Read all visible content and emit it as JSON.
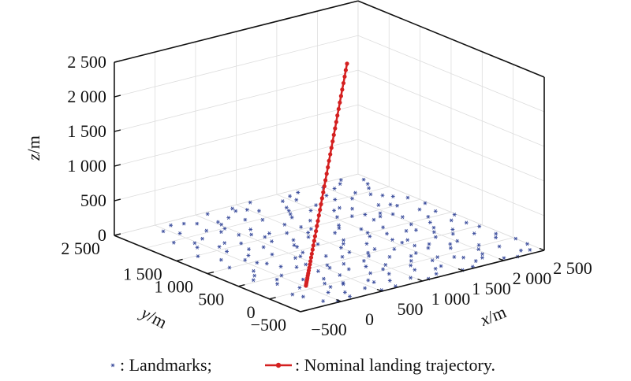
{
  "chart_data": {
    "type": "scatter",
    "projection": "3d",
    "xlabel": {
      "var": "x",
      "unit": "/m"
    },
    "ylabel": {
      "var": "y",
      "unit": "/m"
    },
    "zlabel": {
      "var": "z",
      "unit": "/m"
    },
    "xlim": [
      -500,
      2500
    ],
    "ylim": [
      -500,
      2500
    ],
    "zlim": [
      0,
      2500
    ],
    "grid": true,
    "x_ticks": [
      {
        "v": -500,
        "label": "−500"
      },
      {
        "v": 0,
        "label": "0"
      },
      {
        "v": 500,
        "label": "500"
      },
      {
        "v": 1000,
        "label": "1 000"
      },
      {
        "v": 1500,
        "label": "1 500"
      },
      {
        "v": 2000,
        "label": "2 000"
      },
      {
        "v": 2500,
        "label": "2 500"
      }
    ],
    "y_ticks": [
      {
        "v": -500,
        "label": "−500"
      },
      {
        "v": 0,
        "label": "0"
      },
      {
        "v": 500,
        "label": "500"
      },
      {
        "v": 1000,
        "label": "1 000"
      },
      {
        "v": 1500,
        "label": "1 500"
      },
      {
        "v": 2500,
        "label": "2 500"
      }
    ],
    "z_ticks": [
      {
        "v": 0,
        "label": "0"
      },
      {
        "v": 500,
        "label": "500"
      },
      {
        "v": 1000,
        "label": "1 000"
      },
      {
        "v": 1500,
        "label": "1 500"
      },
      {
        "v": 2000,
        "label": "2 000"
      },
      {
        "v": 2500,
        "label": "2 500"
      }
    ],
    "legend": {
      "placement": "bottom",
      "items": [
        {
          "label": ": Landmarks;",
          "marker": "asterisk"
        },
        {
          "label": ": Nominal landing trajectory.",
          "marker": "line-dot"
        }
      ]
    },
    "colors": {
      "landmarks": "#3a4c9c",
      "trajectory": "#d42020",
      "grid": "#dddddd",
      "axis": "#111111"
    },
    "series": [
      {
        "name": "Landmarks",
        "z": 0,
        "points": [
          [
            120,
            2400
          ],
          [
            350,
            2280
          ],
          [
            610,
            2450
          ],
          [
            880,
            2350
          ],
          [
            1150,
            2470
          ],
          [
            1420,
            2300
          ],
          [
            1700,
            2420
          ],
          [
            1980,
            2380
          ],
          [
            2260,
            2460
          ],
          [
            2440,
            2330
          ],
          [
            40,
            2150
          ],
          [
            290,
            2050
          ],
          [
            540,
            2190
          ],
          [
            790,
            2080
          ],
          [
            1060,
            2210
          ],
          [
            1330,
            2120
          ],
          [
            1600,
            2000
          ],
          [
            1860,
            2170
          ],
          [
            2130,
            2060
          ],
          [
            2390,
            2200
          ],
          [
            -180,
            1960
          ],
          [
            110,
            1880
          ],
          [
            380,
            1930
          ],
          [
            650,
            1810
          ],
          [
            920,
            1970
          ],
          [
            1190,
            1850
          ],
          [
            1460,
            1900
          ],
          [
            1730,
            1790
          ],
          [
            2000,
            1940
          ],
          [
            2290,
            1830
          ],
          [
            -90,
            1700
          ],
          [
            200,
            1640
          ],
          [
            460,
            1750
          ],
          [
            720,
            1600
          ],
          [
            1000,
            1720
          ],
          [
            1270,
            1660
          ],
          [
            1540,
            1580
          ],
          [
            1810,
            1690
          ],
          [
            2080,
            1620
          ],
          [
            2350,
            1740
          ],
          [
            -250,
            1480
          ],
          [
            60,
            1420
          ],
          [
            320,
            1530
          ],
          [
            590,
            1390
          ],
          [
            860,
            1500
          ],
          [
            1120,
            1450
          ],
          [
            1400,
            1370
          ],
          [
            1670,
            1510
          ],
          [
            1940,
            1410
          ],
          [
            2210,
            1490
          ],
          [
            2470,
            1380
          ],
          [
            -140,
            1250
          ],
          [
            150,
            1190
          ],
          [
            420,
            1300
          ],
          [
            690,
            1160
          ],
          [
            950,
            1270
          ],
          [
            1230,
            1210
          ],
          [
            1500,
            1140
          ],
          [
            1770,
            1290
          ],
          [
            2040,
            1180
          ],
          [
            2310,
            1260
          ],
          [
            -220,
            1010
          ],
          [
            80,
            960
          ],
          [
            350,
            1070
          ],
          [
            620,
            930
          ],
          [
            890,
            1040
          ],
          [
            1160,
            980
          ],
          [
            1430,
            910
          ],
          [
            1700,
            1050
          ],
          [
            1970,
            950
          ],
          [
            2240,
            1030
          ],
          [
            2480,
            920
          ],
          [
            -100,
            780
          ],
          [
            190,
            720
          ],
          [
            460,
            840
          ],
          [
            730,
            700
          ],
          [
            1000,
            810
          ],
          [
            1270,
            750
          ],
          [
            1540,
            690
          ],
          [
            1810,
            820
          ],
          [
            2080,
            730
          ],
          [
            2350,
            800
          ],
          [
            -270,
            560
          ],
          [
            30,
            500
          ],
          [
            300,
            610
          ],
          [
            570,
            470
          ],
          [
            840,
            580
          ],
          [
            1110,
            520
          ],
          [
            1380,
            450
          ],
          [
            1650,
            590
          ],
          [
            1920,
            490
          ],
          [
            2190,
            570
          ],
          [
            2450,
            480
          ],
          [
            -160,
            320
          ],
          [
            120,
            270
          ],
          [
            390,
            380
          ],
          [
            660,
            240
          ],
          [
            930,
            350
          ],
          [
            1200,
            290
          ],
          [
            1470,
            220
          ],
          [
            1740,
            360
          ],
          [
            2010,
            260
          ],
          [
            2280,
            340
          ],
          [
            -60,
            90
          ],
          [
            210,
            40
          ],
          [
            480,
            150
          ],
          [
            750,
            10
          ],
          [
            1020,
            120
          ],
          [
            1290,
            60
          ],
          [
            1560,
            -10
          ],
          [
            1830,
            130
          ],
          [
            2100,
            30
          ],
          [
            2370,
            110
          ],
          [
            -200,
            -150
          ],
          [
            70,
            -200
          ],
          [
            340,
            -90
          ],
          [
            610,
            -230
          ],
          [
            880,
            -120
          ],
          [
            1150,
            -180
          ],
          [
            1420,
            -250
          ],
          [
            1690,
            -110
          ],
          [
            1960,
            -210
          ],
          [
            2230,
            -130
          ],
          [
            2490,
            -240
          ],
          [
            -130,
            -380
          ],
          [
            160,
            -430
          ],
          [
            430,
            -320
          ],
          [
            700,
            -460
          ],
          [
            970,
            -350
          ],
          [
            1240,
            -410
          ],
          [
            1510,
            -480
          ],
          [
            1780,
            -340
          ],
          [
            2050,
            -440
          ],
          [
            2320,
            -360
          ],
          [
            250,
            2360
          ],
          [
            520,
            2110
          ],
          [
            990,
            2310
          ],
          [
            1290,
            2030
          ],
          [
            1550,
            2250
          ],
          [
            2050,
            2290
          ],
          [
            2320,
            2090
          ],
          [
            -50,
            2300
          ],
          [
            700,
            2230
          ],
          [
            1850,
            2020
          ],
          [
            -30,
            1820
          ],
          [
            560,
            1680
          ],
          [
            1080,
            1560
          ],
          [
            1640,
            1760
          ],
          [
            2180,
            1560
          ],
          [
            2440,
            1620
          ],
          [
            270,
            1340
          ],
          [
            780,
            1290
          ],
          [
            1350,
            1300
          ],
          [
            1880,
            1330
          ],
          [
            2400,
            1120
          ],
          [
            40,
            1100
          ],
          [
            530,
            850
          ],
          [
            1090,
            890
          ],
          [
            1610,
            870
          ],
          [
            2150,
            880
          ],
          [
            -180,
            660
          ],
          [
            420,
            620
          ],
          [
            980,
            650
          ],
          [
            1560,
            560
          ],
          [
            2000,
            620
          ],
          [
            2420,
            650
          ],
          [
            -80,
            430
          ],
          [
            540,
            390
          ],
          [
            1060,
            440
          ],
          [
            1600,
            410
          ],
          [
            2110,
            460
          ],
          [
            290,
            160
          ],
          [
            840,
            200
          ],
          [
            1380,
            180
          ],
          [
            1900,
            230
          ],
          [
            2440,
            200
          ],
          [
            -240,
            -30
          ],
          [
            360,
            -60
          ],
          [
            920,
            30
          ],
          [
            1460,
            -60
          ],
          [
            2020,
            -70
          ],
          [
            2500,
            -40
          ],
          [
            200,
            -300
          ],
          [
            760,
            -290
          ],
          [
            1330,
            -280
          ],
          [
            1890,
            -300
          ],
          [
            2400,
            -400
          ],
          [
            -20,
            -470
          ],
          [
            520,
            -470
          ],
          [
            1090,
            -480
          ],
          [
            1650,
            -460
          ],
          [
            2180,
            -490
          ],
          [
            900,
            2430
          ],
          [
            1570,
            2380
          ],
          [
            2180,
            2370
          ],
          [
            470,
            1990
          ],
          [
            1240,
            1940
          ],
          [
            2220,
            1930
          ],
          [
            620,
            1540
          ],
          [
            1800,
            1470
          ],
          [
            90,
            1580
          ],
          [
            1030,
            1380
          ],
          [
            2020,
            1310
          ],
          [
            1480,
            1010
          ],
          [
            680,
            1100
          ],
          [
            1900,
            780
          ],
          [
            140,
            880
          ],
          [
            1230,
            570
          ],
          [
            720,
            400
          ],
          [
            1660,
            270
          ],
          [
            190,
            -80
          ],
          [
            1200,
            -50
          ],
          [
            1750,
            -180
          ],
          [
            600,
            -150
          ]
        ]
      },
      {
        "name": "Nominal landing trajectory",
        "x": [
          1377,
          1337,
          1298,
          1259,
          1219,
          1180,
          1140,
          1101,
          1061,
          1022,
          983,
          943,
          904,
          864,
          825,
          785,
          746,
          707,
          667,
          631,
          594,
          557,
          521,
          487,
          453,
          419,
          388,
          357,
          326,
          298,
          270,
          245,
          219,
          197,
          174,
          155,
          135,
          118,
          101,
          87,
          73,
          62,
          50,
          42,
          33,
          28,
          25
        ],
        "y": [
          1207,
          1175,
          1142,
          1110,
          1078,
          1046,
          1013,
          981,
          949,
          916,
          884,
          852,
          820,
          787,
          755,
          723,
          690,
          658,
          626,
          596,
          566,
          536,
          506,
          478,
          451,
          423,
          398,
          372,
          347,
          324,
          301,
          280,
          259,
          241,
          222,
          206,
          190,
          176,
          162,
          151,
          139,
          130,
          121,
          114,
          107,
          102,
          100
        ],
        "z": [
          2400,
          2330,
          2260,
          2190,
          2120,
          2050,
          1980,
          1910,
          1840,
          1770,
          1700,
          1630,
          1560,
          1490,
          1420,
          1350,
          1280,
          1210,
          1140,
          1075,
          1010,
          945,
          880,
          820,
          760,
          700,
          645,
          590,
          535,
          485,
          435,
          390,
          345,
          305,
          265,
          230,
          195,
          165,
          135,
          110,
          85,
          65,
          45,
          30,
          15,
          5,
          0
        ]
      }
    ]
  }
}
